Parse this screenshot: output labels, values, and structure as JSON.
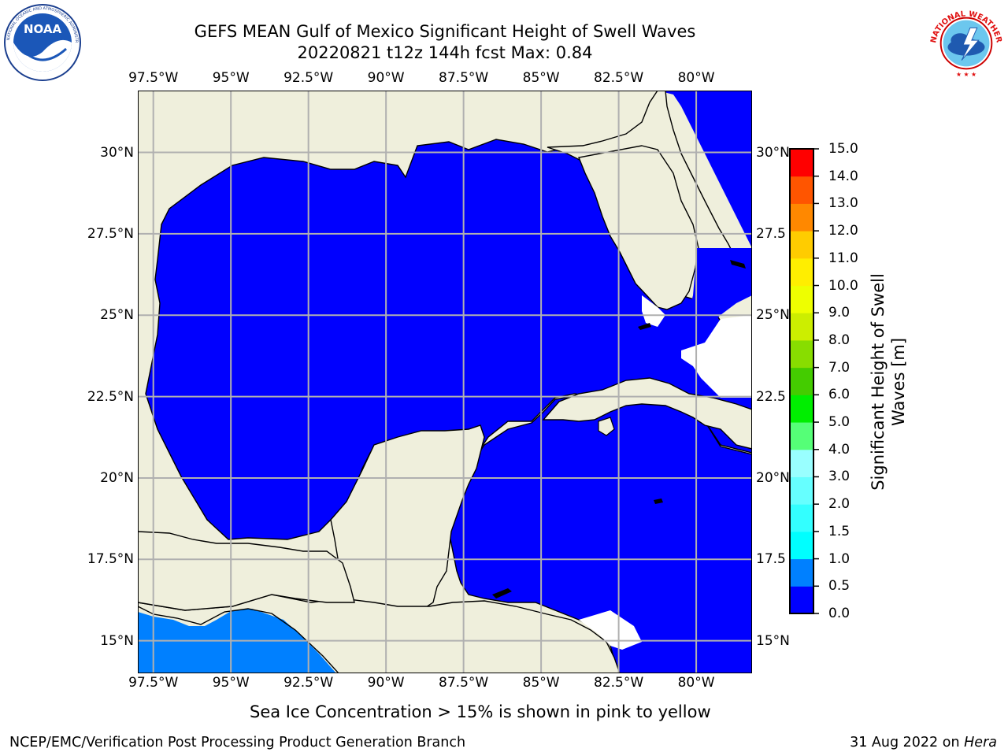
{
  "header": {
    "title_line1": "GEFS MEAN Gulf of Mexico Significant Height of Swell Waves",
    "title_line2": "20220821 t12z 144h fcst   Max: 0.84"
  },
  "logos": {
    "left": {
      "name": "NOAA",
      "text": "NOAA",
      "ring_text": "NATIONAL OCEANIC AND ATMOSPHERIC ADMINISTRATION · U.S. DEPARTMENT OF COMMERCE"
    },
    "right": {
      "name": "National Weather Service",
      "ring_text": "NATIONAL WEATHER SERVICE"
    }
  },
  "map": {
    "lon_labels": [
      "97.5°W",
      "95°W",
      "92.5°W",
      "90°W",
      "87.5°W",
      "85°W",
      "82.5°W",
      "80°W"
    ],
    "lat_labels_left": [
      "30°N",
      "27.5°N",
      "25°N",
      "22.5°N",
      "20°N",
      "17.5°N",
      "15°N"
    ],
    "lat_labels_right": [
      "30°N",
      "27.5",
      "25°N",
      "22.5",
      "20°N",
      "17.5",
      "15°N"
    ],
    "lon_values": [
      -97.5,
      -95,
      -92.5,
      -90,
      -87.5,
      -85,
      -82.5,
      -80
    ],
    "lat_values": [
      30,
      27.5,
      25,
      22.5,
      20,
      17.5,
      15
    ],
    "extent": {
      "lon": [
        -98,
        -78.2
      ],
      "lat": [
        14,
        31.9
      ]
    },
    "colors": {
      "land": "#efefdc",
      "ocean": "#0000ff",
      "swell_05_10": "#0080ff",
      "gridline": "#b0b0b0",
      "missing": "#ffffff"
    }
  },
  "colorbar": {
    "label": "Significant Height of Swell Waves [m]",
    "label_line1": "Significant Height of Swell",
    "label_line2": "Waves [m]",
    "ticks": [
      "0.0",
      "0.5",
      "1.0",
      "1.5",
      "2.0",
      "3.0",
      "4.0",
      "5.0",
      "6.0",
      "7.0",
      "8.0",
      "9.0",
      "10.0",
      "11.0",
      "12.0",
      "13.0",
      "14.0",
      "15.0"
    ],
    "colors": [
      "#0000ff",
      "#0080ff",
      "#00ffff",
      "#33ffff",
      "#66ffff",
      "#99ffff",
      "#55ff77",
      "#00ee00",
      "#44cc00",
      "#88dd00",
      "#ccee00",
      "#eeff00",
      "#ffee00",
      "#ffcc00",
      "#ffaa00",
      "#ff8800",
      "#ff5500",
      "#ff2200",
      "#ff0000"
    ]
  },
  "note": "Sea Ice Concentration > 15% is shown in pink to yellow",
  "footer": {
    "left": "NCEP/EMC/Verification Post Processing Product Generation Branch",
    "right_date": "31 Aug 2022 on",
    "right_machine": "Hera"
  }
}
